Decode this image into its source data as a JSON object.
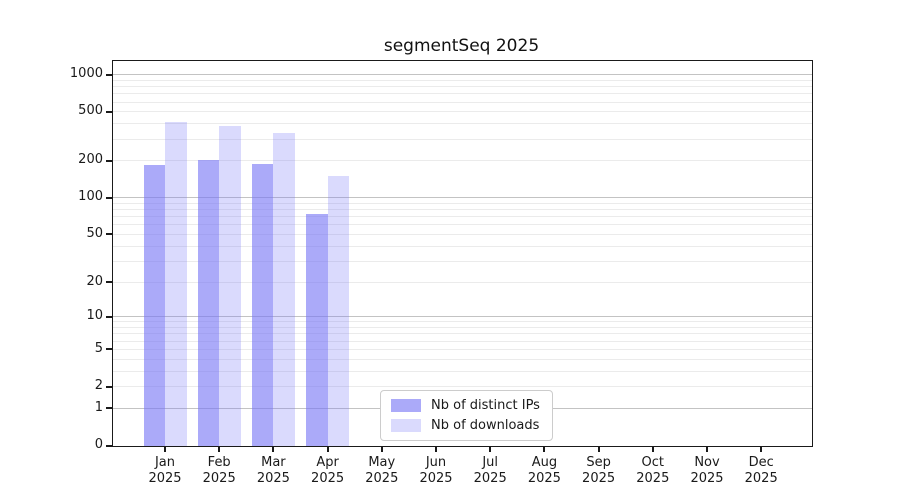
{
  "chart_data": {
    "type": "bar",
    "title": "segmentSeq 2025",
    "categories": [
      "Jan 2025",
      "Feb 2025",
      "Mar 2025",
      "Apr 2025",
      "May 2025",
      "Jun 2025",
      "Jul 2025",
      "Aug 2025",
      "Sep 2025",
      "Oct 2025",
      "Nov 2025",
      "Dec 2025"
    ],
    "series": [
      {
        "name": "Nb of distinct IPs",
        "fill": "rgba(120,118,246,0.62)",
        "values": [
          188,
          205,
          190,
          74,
          null,
          null,
          null,
          null,
          null,
          null,
          null,
          null
        ]
      },
      {
        "name": "Nb of downloads",
        "fill": "rgba(120,118,246,0.27)",
        "values": [
          420,
          385,
          340,
          152,
          null,
          null,
          null,
          null,
          null,
          null,
          null,
          null
        ]
      }
    ],
    "yscale": "log1p",
    "ylim": [
      0,
      1280
    ],
    "yticks_labeled": [
      0,
      1,
      2,
      5,
      10,
      20,
      50,
      100,
      200,
      500,
      1000
    ],
    "ygrid_major": [
      1,
      10,
      100,
      1000
    ],
    "ygrid_minor": [
      3,
      4,
      6,
      7,
      8,
      9,
      30,
      40,
      60,
      70,
      80,
      90,
      300,
      400,
      600,
      700,
      800,
      900
    ],
    "grid": "both",
    "legend_position": "lower center"
  },
  "colors": {
    "background": "#ffffff",
    "axis": "#1a1a1a",
    "major_grid": "#c3c3c3",
    "minor_grid": "#ebebeb",
    "bar_dark": "#aba9f9",
    "bar_light": "#dbdaf9"
  }
}
